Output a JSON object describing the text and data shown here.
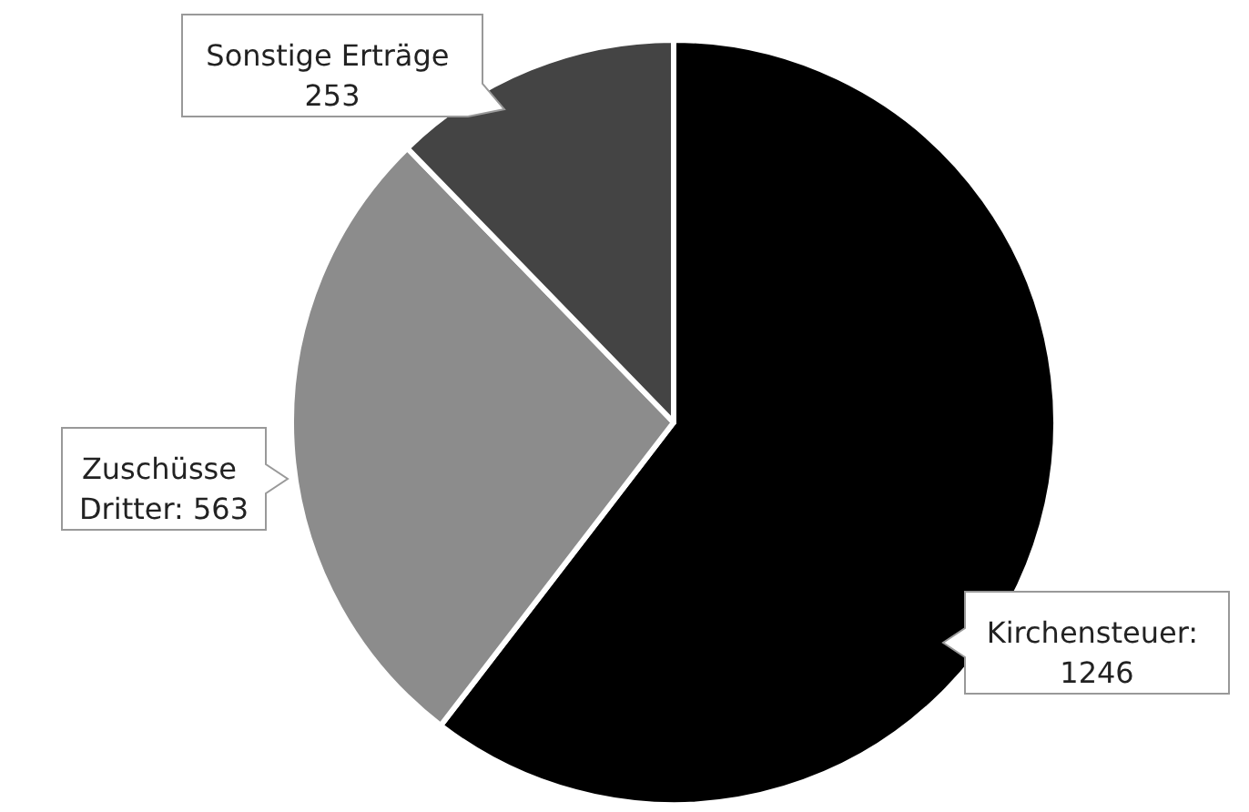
{
  "chart_data": {
    "type": "pie",
    "categories": [
      "Kirchensteuer",
      "Zuschüsse Dritter",
      "Sonstige Erträge"
    ],
    "values": [
      1246,
      563,
      253
    ],
    "colors": [
      "#000000",
      "#8c8c8c",
      "#444444"
    ],
    "value_labels": [
      ": 1246",
      ": 563",
      "253"
    ],
    "legend": false
  }
}
